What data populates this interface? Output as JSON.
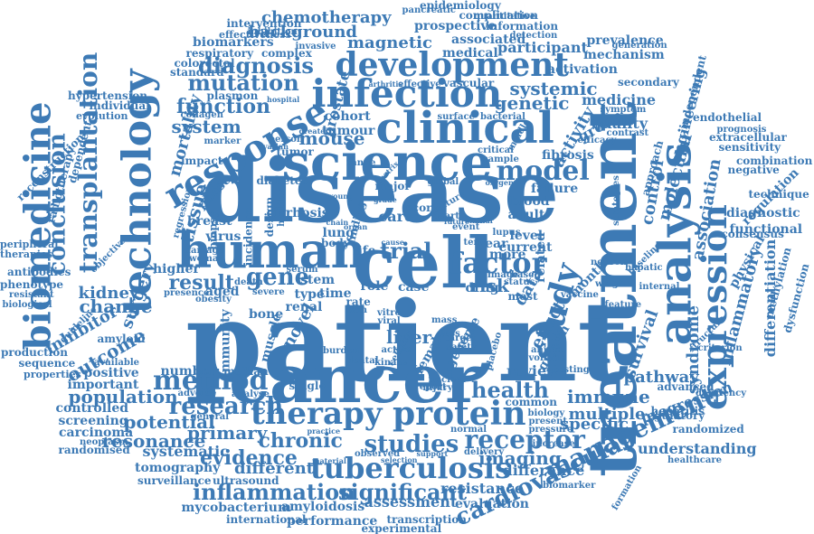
{
  "style": {
    "word_color": "#3d7ab5",
    "background": "#ffffff"
  },
  "words": [
    {
      "text": "patient"
    },
    {
      "text": "disease"
    },
    {
      "text": "cancer"
    },
    {
      "text": "treatment"
    },
    {
      "text": "science"
    },
    {
      "text": "human"
    },
    {
      "text": "cell"
    },
    {
      "text": "clinical"
    },
    {
      "text": "technology"
    },
    {
      "text": "analysis"
    },
    {
      "text": "response"
    },
    {
      "text": "infection"
    },
    {
      "text": "therapy"
    },
    {
      "text": "protein"
    },
    {
      "text": "biomedicine"
    },
    {
      "text": "expression"
    },
    {
      "text": "tuberculosis"
    },
    {
      "text": "development"
    },
    {
      "text": "study"
    },
    {
      "text": "method"
    },
    {
      "text": "inflammation"
    },
    {
      "text": "significant"
    },
    {
      "text": "transplantation"
    },
    {
      "text": "cardiovascular"
    },
    {
      "text": "management"
    },
    {
      "text": "studies"
    },
    {
      "text": "receptor"
    },
    {
      "text": "factor"
    },
    {
      "text": "model"
    },
    {
      "text": "mutation"
    },
    {
      "text": "conclusion"
    },
    {
      "text": "research"
    },
    {
      "text": "diagnosis"
    },
    {
      "text": "chemotherapy"
    },
    {
      "text": "background"
    },
    {
      "text": "magnetic"
    },
    {
      "text": "mouse"
    },
    {
      "text": "function"
    },
    {
      "text": "system"
    },
    {
      "text": "gene"
    },
    {
      "text": "result"
    },
    {
      "text": "liver"
    },
    {
      "text": "trial"
    },
    {
      "text": "risk"
    },
    {
      "text": "health"
    },
    {
      "text": "imaging"
    },
    {
      "text": "chronic"
    },
    {
      "text": "evidence"
    },
    {
      "text": "primary"
    },
    {
      "text": "potential"
    },
    {
      "text": "population"
    },
    {
      "text": "resonance"
    },
    {
      "text": "change"
    },
    {
      "text": "outcome"
    },
    {
      "text": "surgery"
    },
    {
      "text": "kidney"
    },
    {
      "text": "inhibitor"
    },
    {
      "text": "immune"
    },
    {
      "text": "multiple"
    },
    {
      "text": "specific"
    },
    {
      "text": "pathway"
    },
    {
      "text": "progression"
    },
    {
      "text": "syndrome"
    },
    {
      "text": "inflammatory"
    },
    {
      "text": "differentiation"
    },
    {
      "text": "survival"
    },
    {
      "text": "molecular"
    },
    {
      "text": "control"
    },
    {
      "text": "association"
    },
    {
      "text": "regulation"
    },
    {
      "text": "diagnostic"
    },
    {
      "text": "functional"
    },
    {
      "text": "engineering"
    },
    {
      "text": "medicine"
    },
    {
      "text": "genetic"
    },
    {
      "text": "systemic"
    },
    {
      "text": "quality"
    },
    {
      "text": "group"
    },
    {
      "text": "activity"
    },
    {
      "text": "activation"
    },
    {
      "text": "mechanism"
    },
    {
      "text": "medical"
    },
    {
      "text": "participant"
    },
    {
      "text": "associated"
    },
    {
      "text": "prospective"
    },
    {
      "text": "complication"
    },
    {
      "text": "information"
    },
    {
      "text": "prevalence"
    },
    {
      "text": "biomarkers"
    },
    {
      "text": "intervention"
    },
    {
      "text": "epidemiology"
    },
    {
      "text": "effectiveness"
    },
    {
      "text": "respiratory"
    },
    {
      "text": "complex"
    },
    {
      "text": "colorectal"
    },
    {
      "text": "standard"
    },
    {
      "text": "hypertension"
    },
    {
      "text": "individual"
    },
    {
      "text": "evolution"
    },
    {
      "text": "mortality"
    },
    {
      "text": "tissue"
    },
    {
      "text": "cohort"
    },
    {
      "text": "tumour"
    },
    {
      "text": "prostate"
    },
    {
      "text": "reconstruction"
    },
    {
      "text": "radiotherapy"
    },
    {
      "text": "dependent"
    },
    {
      "text": "peripheral"
    },
    {
      "text": "therapies"
    },
    {
      "text": "antibodies"
    },
    {
      "text": "phenotype"
    },
    {
      "text": "resistant"
    },
    {
      "text": "biological"
    },
    {
      "text": "production"
    },
    {
      "text": "sequence"
    },
    {
      "text": "properties"
    },
    {
      "text": "positive"
    },
    {
      "text": "important"
    },
    {
      "text": "controlled"
    },
    {
      "text": "screening"
    },
    {
      "text": "carcinoma"
    },
    {
      "text": "neoplasm"
    },
    {
      "text": "randomised"
    },
    {
      "text": "systematic"
    },
    {
      "text": "tomography"
    },
    {
      "text": "surveillance"
    },
    {
      "text": "different"
    },
    {
      "text": "ultrasound"
    },
    {
      "text": "mycobacterium"
    },
    {
      "text": "amyloidosis"
    },
    {
      "text": "international"
    },
    {
      "text": "performance"
    },
    {
      "text": "assessment"
    },
    {
      "text": "resistance"
    },
    {
      "text": "difference"
    },
    {
      "text": "evaluation"
    },
    {
      "text": "transcription"
    },
    {
      "text": "experimental"
    },
    {
      "text": "review"
    },
    {
      "text": "number"
    },
    {
      "text": "median"
    },
    {
      "text": "understanding"
    },
    {
      "text": "healthcare"
    },
    {
      "text": "randomized"
    },
    {
      "text": "regulatory"
    },
    {
      "text": "advanced"
    },
    {
      "text": "hepatitis"
    },
    {
      "text": "deficiency"
    },
    {
      "text": "criterion"
    },
    {
      "text": "methylation"
    },
    {
      "text": "dysfunction"
    },
    {
      "text": "consensus"
    },
    {
      "text": "physical"
    },
    {
      "text": "technique"
    },
    {
      "text": "combination"
    },
    {
      "text": "negative"
    },
    {
      "text": "sensitivity"
    },
    {
      "text": "prognosis"
    },
    {
      "text": "extracellular"
    },
    {
      "text": "endothelial"
    },
    {
      "text": "symptom"
    },
    {
      "text": "approach"
    },
    {
      "text": "contrast"
    },
    {
      "text": "secondary"
    },
    {
      "text": "independent"
    },
    {
      "text": "generation"
    },
    {
      "text": "fibrosis"
    },
    {
      "text": "failure"
    },
    {
      "text": "blood"
    },
    {
      "text": "adult"
    },
    {
      "text": "level"
    },
    {
      "text": "current"
    },
    {
      "text": "year"
    },
    {
      "text": "more"
    },
    {
      "text": "data"
    },
    {
      "text": "effect"
    },
    {
      "text": "related"
    },
    {
      "text": "growth"
    },
    {
      "text": "month"
    },
    {
      "text": "vaccine"
    },
    {
      "text": "care"
    },
    {
      "text": "stem"
    },
    {
      "text": "role"
    },
    {
      "text": "case"
    },
    {
      "text": "time"
    },
    {
      "text": "type"
    },
    {
      "text": "aged"
    },
    {
      "text": "bone"
    },
    {
      "text": "higher"
    },
    {
      "text": "death"
    },
    {
      "text": "presence"
    },
    {
      "text": "virus"
    },
    {
      "text": "breast"
    },
    {
      "text": "diabetes"
    },
    {
      "text": "cirrhosis"
    },
    {
      "text": "drug"
    },
    {
      "text": "genome"
    },
    {
      "text": "female"
    },
    {
      "text": "novel"
    },
    {
      "text": "muscle"
    },
    {
      "text": "immunity"
    },
    {
      "text": "common"
    },
    {
      "text": "biology"
    },
    {
      "text": "present"
    },
    {
      "text": "pressure"
    },
    {
      "text": "increase"
    },
    {
      "text": "delivery"
    },
    {
      "text": "observed"
    },
    {
      "text": "selection"
    },
    {
      "text": "support"
    },
    {
      "text": "material"
    },
    {
      "text": "practice"
    },
    {
      "text": "injury"
    },
    {
      "text": "single"
    },
    {
      "text": "adverse"
    },
    {
      "text": "general"
    },
    {
      "text": "analyse"
    },
    {
      "text": "vascular"
    },
    {
      "text": "effective"
    },
    {
      "text": "arthritis"
    },
    {
      "text": "hospital"
    },
    {
      "text": "plasmon"
    },
    {
      "text": "collagen"
    },
    {
      "text": "invasive"
    },
    {
      "text": "pancreatic"
    },
    {
      "text": "quantitative"
    },
    {
      "text": "inhibition"
    },
    {
      "text": "detection"
    },
    {
      "text": "surface"
    },
    {
      "text": "bacterial"
    },
    {
      "text": "middle"
    },
    {
      "text": "critical"
    },
    {
      "text": "sample"
    },
    {
      "text": "efficacy"
    },
    {
      "text": "strategies"
    },
    {
      "text": "biomarker"
    },
    {
      "text": "formation"
    },
    {
      "text": "testing"
    },
    {
      "text": "internal"
    },
    {
      "text": "weight"
    },
    {
      "text": "feature"
    },
    {
      "text": "neuron"
    },
    {
      "text": "hepatic"
    },
    {
      "text": "baseline"
    },
    {
      "text": "structure"
    },
    {
      "text": "impact"
    },
    {
      "text": "marker"
    },
    {
      "text": "phase"
    },
    {
      "text": "biopsy"
    },
    {
      "text": "incidence"
    },
    {
      "text": "healthy"
    },
    {
      "text": "design"
    },
    {
      "text": "amyloid"
    },
    {
      "text": "guideline"
    },
    {
      "text": "available"
    },
    {
      "text": "objective"
    },
    {
      "text": "damage"
    },
    {
      "text": "woman"
    },
    {
      "text": "obesity"
    },
    {
      "text": "severe"
    },
    {
      "text": "serum"
    },
    {
      "text": "renal"
    },
    {
      "text": "rate"
    },
    {
      "text": "pain"
    },
    {
      "text": "viral"
    },
    {
      "text": "vitro"
    },
    {
      "text": "cellular"
    },
    {
      "text": "active"
    },
    {
      "text": "target"
    },
    {
      "text": "safety"
    },
    {
      "text": "placebo"
    },
    {
      "text": "nuclear"
    },
    {
      "text": "report"
    },
    {
      "text": "dental"
    },
    {
      "text": "burden"
    },
    {
      "text": "kinase"
    },
    {
      "text": "image"
    },
    {
      "text": "based"
    },
    {
      "text": "status"
    },
    {
      "text": "most"
    },
    {
      "text": "animal"
    },
    {
      "text": "volume"
    },
    {
      "text": "lupus"
    },
    {
      "text": "term"
    },
    {
      "text": "similar"
    },
    {
      "text": "future"
    },
    {
      "text": "event"
    },
    {
      "text": "heart"
    },
    {
      "text": "culture"
    },
    {
      "text": "oxygen"
    },
    {
      "text": "global"
    },
    {
      "text": "major"
    },
    {
      "text": "score"
    },
    {
      "text": "grade"
    },
    {
      "text": "young"
    },
    {
      "text": "matrix"
    },
    {
      "text": "range"
    },
    {
      "text": "person"
    },
    {
      "text": "ovarian"
    },
    {
      "text": "greater"
    },
    {
      "text": "tumor"
    },
    {
      "text": "lung"
    },
    {
      "text": "body"
    },
    {
      "text": "chain"
    },
    {
      "text": "organ"
    },
    {
      "text": "cause"
    },
    {
      "text": "life"
    },
    {
      "text": "normal"
    },
    {
      "text": "mass"
    },
    {
      "text": "loss"
    },
    {
      "text": "finding"
    },
    {
      "text": "regression"
    }
  ]
}
